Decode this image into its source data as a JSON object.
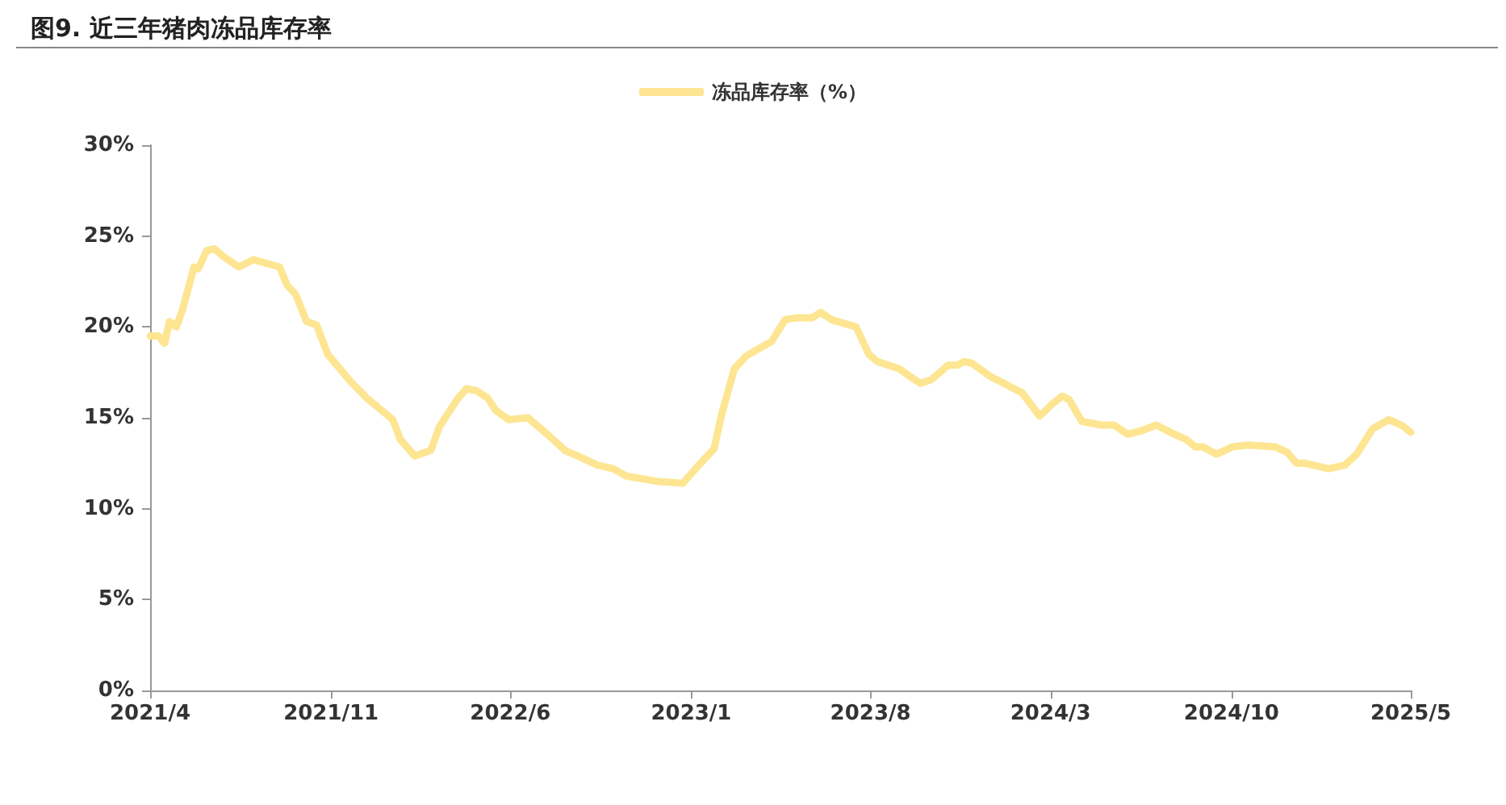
{
  "chart_data": {
    "type": "line",
    "title": "图9. 近三年猪肉冻品库存率",
    "x": [
      "2021-04-01",
      "2021-04-11",
      "2021-04-18",
      "2021-04-24",
      "2021-05-02",
      "2021-05-09",
      "2021-05-23",
      "2021-05-28",
      "2021-06-07",
      "2021-06-16",
      "2021-06-26",
      "2021-07-15",
      "2021-08-01",
      "2021-09-01",
      "2021-09-10",
      "2021-09-20",
      "2021-10-03",
      "2021-10-15",
      "2021-10-28",
      "2021-11-24",
      "2021-12-13",
      "2022-01-13",
      "2022-01-22",
      "2022-02-08",
      "2022-02-27",
      "2022-03-09",
      "2022-03-30",
      "2022-04-10",
      "2022-04-22",
      "2022-05-05",
      "2022-05-15",
      "2022-05-30",
      "2022-06-22",
      "2022-07-17",
      "2022-08-05",
      "2022-08-20",
      "2022-09-12",
      "2022-10-01",
      "2022-10-16",
      "2022-11-22",
      "2022-12-22",
      "2023-01-10",
      "2023-01-28",
      "2023-02-06",
      "2023-02-21",
      "2023-03-07",
      "2023-03-18",
      "2023-04-06",
      "2023-04-22",
      "2023-05-05",
      "2023-05-24",
      "2023-06-03",
      "2023-06-16",
      "2023-07-15",
      "2023-07-20",
      "2023-07-30",
      "2023-08-09",
      "2023-09-04",
      "2023-09-16",
      "2023-09-29",
      "2023-10-12",
      "2023-11-01",
      "2023-11-12",
      "2023-11-20",
      "2023-11-29",
      "2023-12-20",
      "2024-01-06",
      "2024-01-22",
      "2024-01-27",
      "2024-02-17",
      "2024-03-04",
      "2024-03-15",
      "2024-03-23",
      "2024-04-07",
      "2024-04-30",
      "2024-05-15",
      "2024-05-31",
      "2024-06-17",
      "2024-07-04",
      "2024-07-21",
      "2024-08-09",
      "2024-08-19",
      "2024-08-28",
      "2024-09-13",
      "2024-10-02",
      "2024-10-21",
      "2024-11-22",
      "2024-12-06",
      "2024-12-17",
      "2024-12-27",
      "2025-01-24",
      "2025-02-12",
      "2025-02-26",
      "2025-03-17",
      "2025-04-05",
      "2025-04-20",
      "2025-05-01"
    ],
    "series": [
      {
        "name": "冻品库存率（%）",
        "color": "#fde592",
        "values": [
          19.5,
          19.5,
          19.1,
          20.3,
          20.0,
          20.9,
          23.3,
          23.2,
          24.2,
          24.3,
          23.9,
          23.3,
          23.7,
          23.3,
          22.3,
          21.8,
          20.3,
          20.1,
          18.5,
          17.0,
          16.1,
          14.9,
          13.8,
          12.9,
          13.2,
          14.5,
          16.0,
          16.6,
          16.5,
          16.1,
          15.4,
          14.9,
          15.0,
          14.0,
          13.2,
          12.9,
          12.4,
          12.2,
          11.8,
          11.5,
          11.4,
          12.4,
          13.3,
          15.2,
          17.7,
          18.4,
          18.7,
          19.2,
          20.4,
          20.5,
          20.5,
          20.8,
          20.4,
          20.0,
          19.5,
          18.5,
          18.1,
          17.7,
          17.3,
          16.9,
          17.1,
          17.9,
          17.9,
          18.1,
          18.0,
          17.3,
          16.9,
          16.5,
          16.4,
          15.1,
          15.8,
          16.2,
          16.0,
          14.8,
          14.6,
          14.6,
          14.1,
          14.3,
          14.6,
          14.2,
          13.8,
          13.4,
          13.4,
          13.0,
          13.4,
          13.5,
          13.4,
          13.1,
          12.5,
          12.5,
          12.2,
          12.4,
          13.0,
          14.4,
          14.9,
          14.6,
          14.2
        ]
      }
    ],
    "xlim": [
      "2021-04-01",
      "2025-05-01"
    ],
    "xticks": [
      {
        "value": "2021-04-01",
        "label": "2021/4"
      },
      {
        "value": "2021-11-01",
        "label": "2021/11"
      },
      {
        "value": "2022-06-01",
        "label": "2022/6"
      },
      {
        "value": "2023-01-01",
        "label": "2023/1"
      },
      {
        "value": "2023-08-01",
        "label": "2023/8"
      },
      {
        "value": "2024-03-01",
        "label": "2024/3"
      },
      {
        "value": "2024-10-01",
        "label": "2024/10"
      },
      {
        "value": "2025-05-01",
        "label": "2025/5"
      }
    ],
    "ylim": [
      0,
      30
    ],
    "yticks": [
      {
        "value": 0,
        "label": "0%"
      },
      {
        "value": 5,
        "label": "5%"
      },
      {
        "value": 10,
        "label": "10%"
      },
      {
        "value": 15,
        "label": "15%"
      },
      {
        "value": 20,
        "label": "20%"
      },
      {
        "value": 25,
        "label": "25%"
      },
      {
        "value": 30,
        "label": "30%"
      }
    ],
    "grid": false,
    "legend": "top",
    "marker": "none",
    "line_style": "solid"
  }
}
